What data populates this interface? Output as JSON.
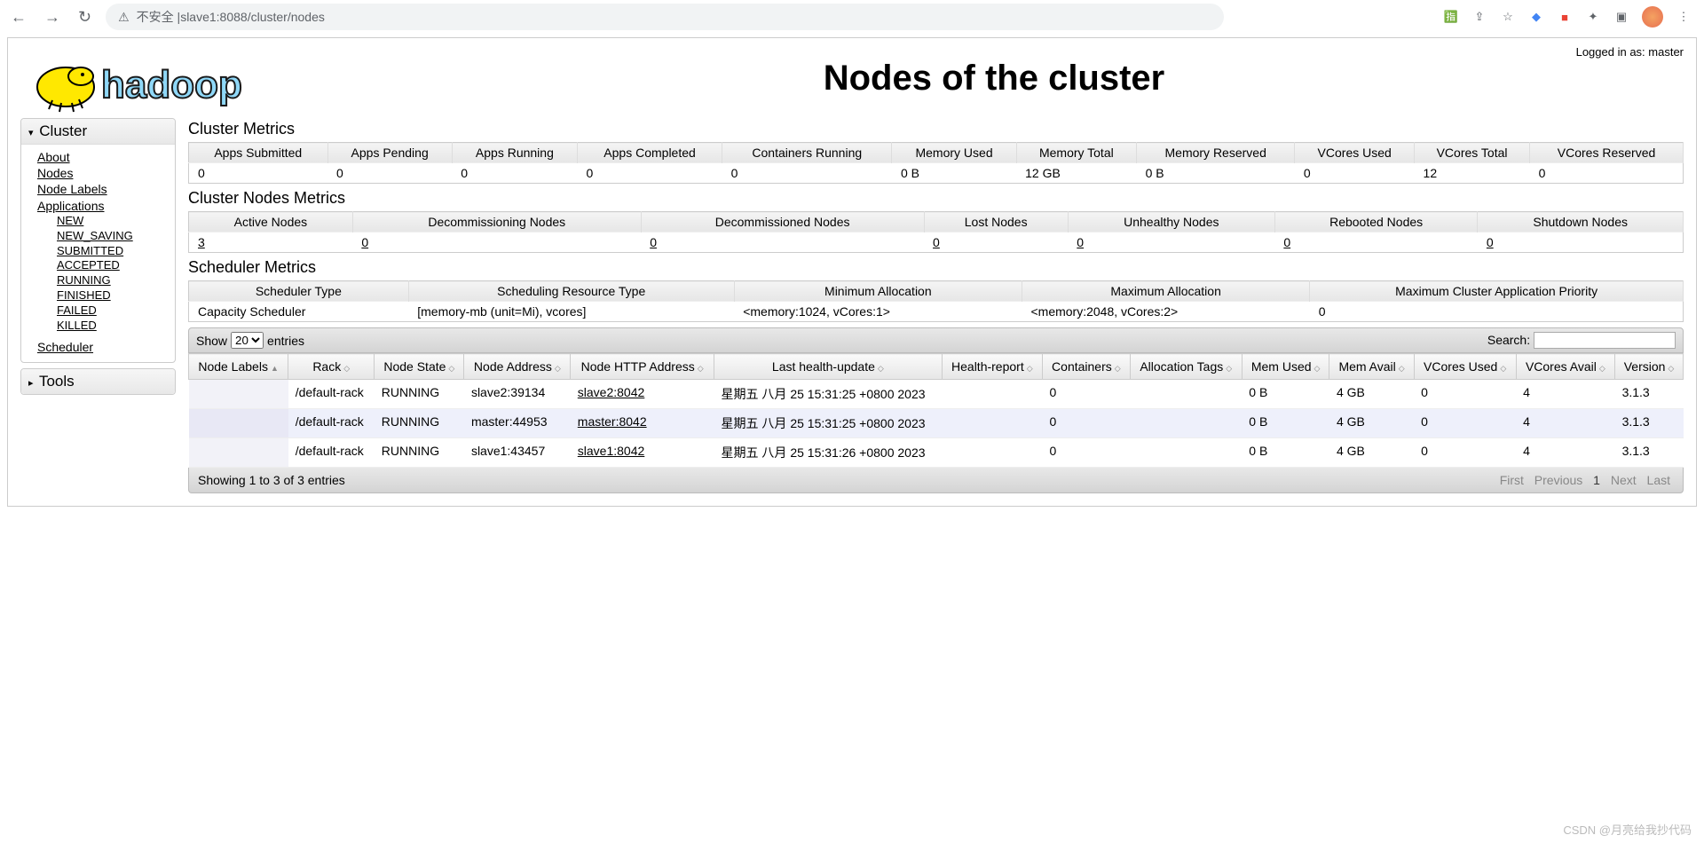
{
  "browser": {
    "url_prefix": "不安全 | ",
    "url": "slave1:8088/cluster/nodes"
  },
  "login_text": "Logged in as: master",
  "page_title": "Nodes of the cluster",
  "sidebar": {
    "cluster_label": "Cluster",
    "tools_label": "Tools",
    "links": {
      "about": "About",
      "nodes": "Nodes",
      "node_labels": "Node Labels",
      "applications": "Applications",
      "scheduler": "Scheduler"
    },
    "app_states": [
      "NEW",
      "NEW_SAVING",
      "SUBMITTED",
      "ACCEPTED",
      "RUNNING",
      "FINISHED",
      "FAILED",
      "KILLED"
    ]
  },
  "cluster_metrics": {
    "title": "Cluster Metrics",
    "headers": [
      "Apps Submitted",
      "Apps Pending",
      "Apps Running",
      "Apps Completed",
      "Containers Running",
      "Memory Used",
      "Memory Total",
      "Memory Reserved",
      "VCores Used",
      "VCores Total",
      "VCores Reserved"
    ],
    "values": [
      "0",
      "0",
      "0",
      "0",
      "0",
      "0 B",
      "12 GB",
      "0 B",
      "0",
      "12",
      "0"
    ]
  },
  "nodes_metrics": {
    "title": "Cluster Nodes Metrics",
    "headers": [
      "Active Nodes",
      "Decommissioning Nodes",
      "Decommissioned Nodes",
      "Lost Nodes",
      "Unhealthy Nodes",
      "Rebooted Nodes",
      "Shutdown Nodes"
    ],
    "values": [
      "3",
      "0",
      "0",
      "0",
      "0",
      "0",
      "0"
    ]
  },
  "scheduler_metrics": {
    "title": "Scheduler Metrics",
    "headers": [
      "Scheduler Type",
      "Scheduling Resource Type",
      "Minimum Allocation",
      "Maximum Allocation",
      "Maximum Cluster Application Priority"
    ],
    "values": [
      "Capacity Scheduler",
      "[memory-mb (unit=Mi), vcores]",
      "<memory:1024, vCores:1>",
      "<memory:2048, vCores:2>",
      "0"
    ]
  },
  "datatable": {
    "show_label": "Show",
    "entries_label": "entries",
    "page_size": "20",
    "search_label": "Search:",
    "headers": [
      "Node Labels",
      "Rack",
      "Node State",
      "Node Address",
      "Node HTTP Address",
      "Last health-update",
      "Health-report",
      "Containers",
      "Allocation Tags",
      "Mem Used",
      "Mem Avail",
      "VCores Used",
      "VCores Avail",
      "Version"
    ],
    "rows": [
      {
        "labels": "",
        "rack": "/default-rack",
        "state": "RUNNING",
        "addr": "slave2:39134",
        "http": "slave2:8042",
        "health": "星期五 八月 25 15:31:25 +0800 2023",
        "report": "",
        "containers": "0",
        "tags": "",
        "mem_used": "0 B",
        "mem_avail": "4 GB",
        "vc_used": "0",
        "vc_avail": "4",
        "version": "3.1.3"
      },
      {
        "labels": "",
        "rack": "/default-rack",
        "state": "RUNNING",
        "addr": "master:44953",
        "http": "master:8042",
        "health": "星期五 八月 25 15:31:25 +0800 2023",
        "report": "",
        "containers": "0",
        "tags": "",
        "mem_used": "0 B",
        "mem_avail": "4 GB",
        "vc_used": "0",
        "vc_avail": "4",
        "version": "3.1.3"
      },
      {
        "labels": "",
        "rack": "/default-rack",
        "state": "RUNNING",
        "addr": "slave1:43457",
        "http": "slave1:8042",
        "health": "星期五 八月 25 15:31:26 +0800 2023",
        "report": "",
        "containers": "0",
        "tags": "",
        "mem_used": "0 B",
        "mem_avail": "4 GB",
        "vc_used": "0",
        "vc_avail": "4",
        "version": "3.1.3"
      }
    ],
    "info": "Showing 1 to 3 of 3 entries",
    "pager": {
      "first": "First",
      "prev": "Previous",
      "page": "1",
      "next": "Next",
      "last": "Last"
    }
  },
  "watermark": "CSDN @月亮给我抄代码"
}
